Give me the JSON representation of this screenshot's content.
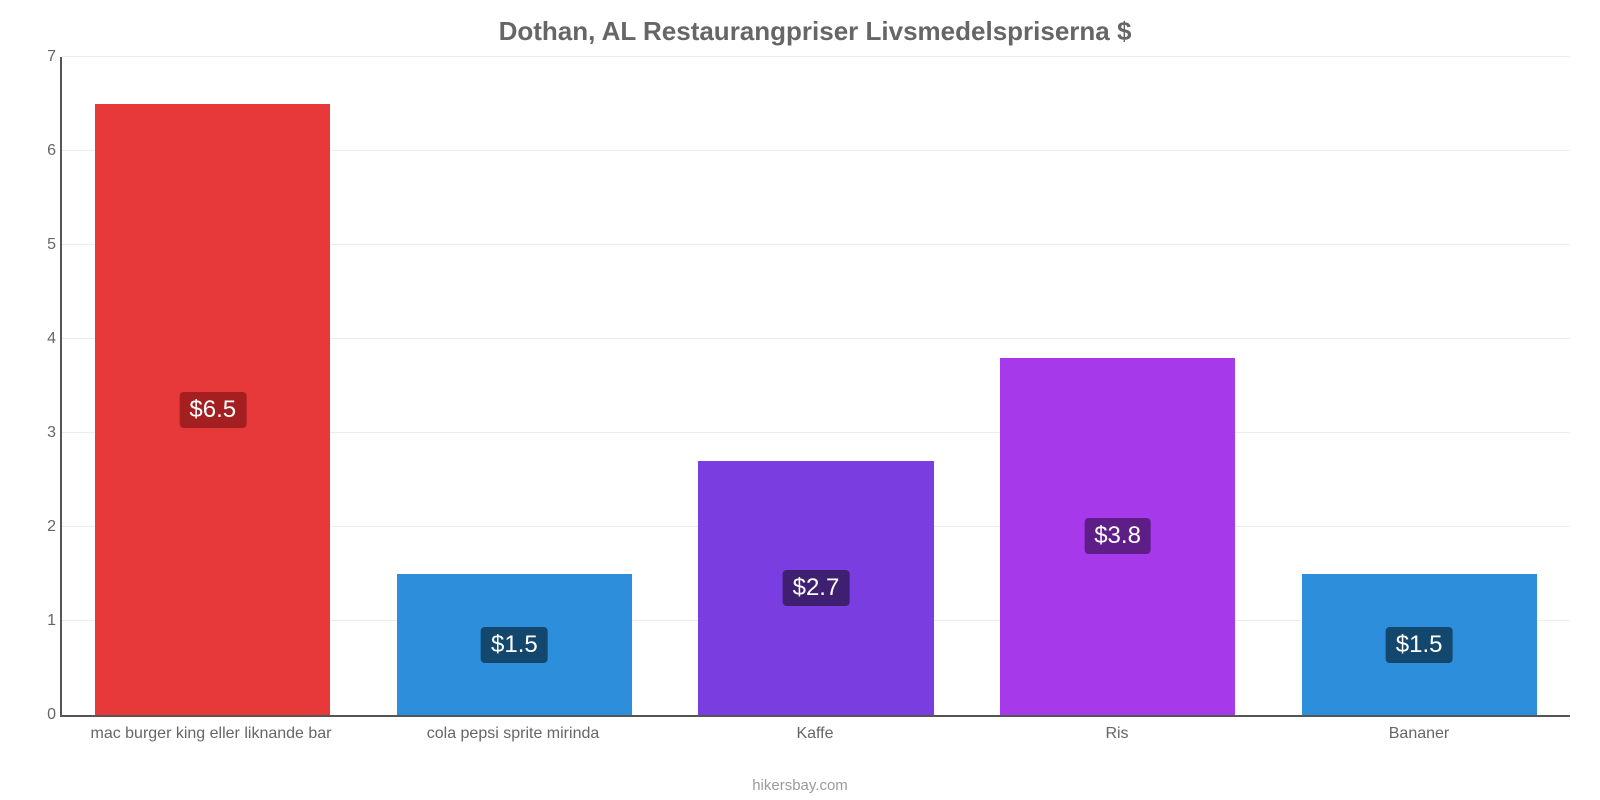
{
  "chart": {
    "type": "bar",
    "title": "Dothan, AL Restaurangpriser Livsmedelspriserna $",
    "title_color": "#666666",
    "title_fontsize": 26,
    "background_color": "#ffffff",
    "axis_color": "#555555",
    "grid_color": "#f0ecec",
    "ylim": [
      0,
      7
    ],
    "yticks": [
      0,
      1,
      2,
      3,
      4,
      5,
      6,
      7
    ],
    "tick_color": "#666666",
    "tick_fontsize": 16,
    "attribution": "hikersbay.com",
    "attribution_color": "#9b9b9b",
    "bar_width_pct": 78,
    "value_prefix": "$",
    "value_badge_text_color": "#ffffff",
    "value_fontsize": 24,
    "categories": [
      "mac burger king eller liknande bar",
      "cola pepsi sprite mirinda",
      "Kaffe",
      "Ris",
      "Bananer"
    ],
    "values": [
      6.5,
      1.5,
      2.7,
      3.8,
      1.5
    ],
    "value_labels": [
      "$6.5",
      "$1.5",
      "$2.7",
      "$3.8",
      "$1.5"
    ],
    "bar_colors": [
      "#e8393a",
      "#2d8fdc",
      "#7а3ee0",
      "#a63aea",
      "#2d8fdc"
    ],
    "bar_colors_hex": [
      "#e8393a",
      "#2d8fdc",
      "#7a3ee0",
      "#a63aea",
      "#2d8fdc"
    ],
    "badge_colors": [
      "#a42020",
      "#14476e",
      "#3f2070",
      "#5d1f87",
      "#14476e"
    ]
  }
}
